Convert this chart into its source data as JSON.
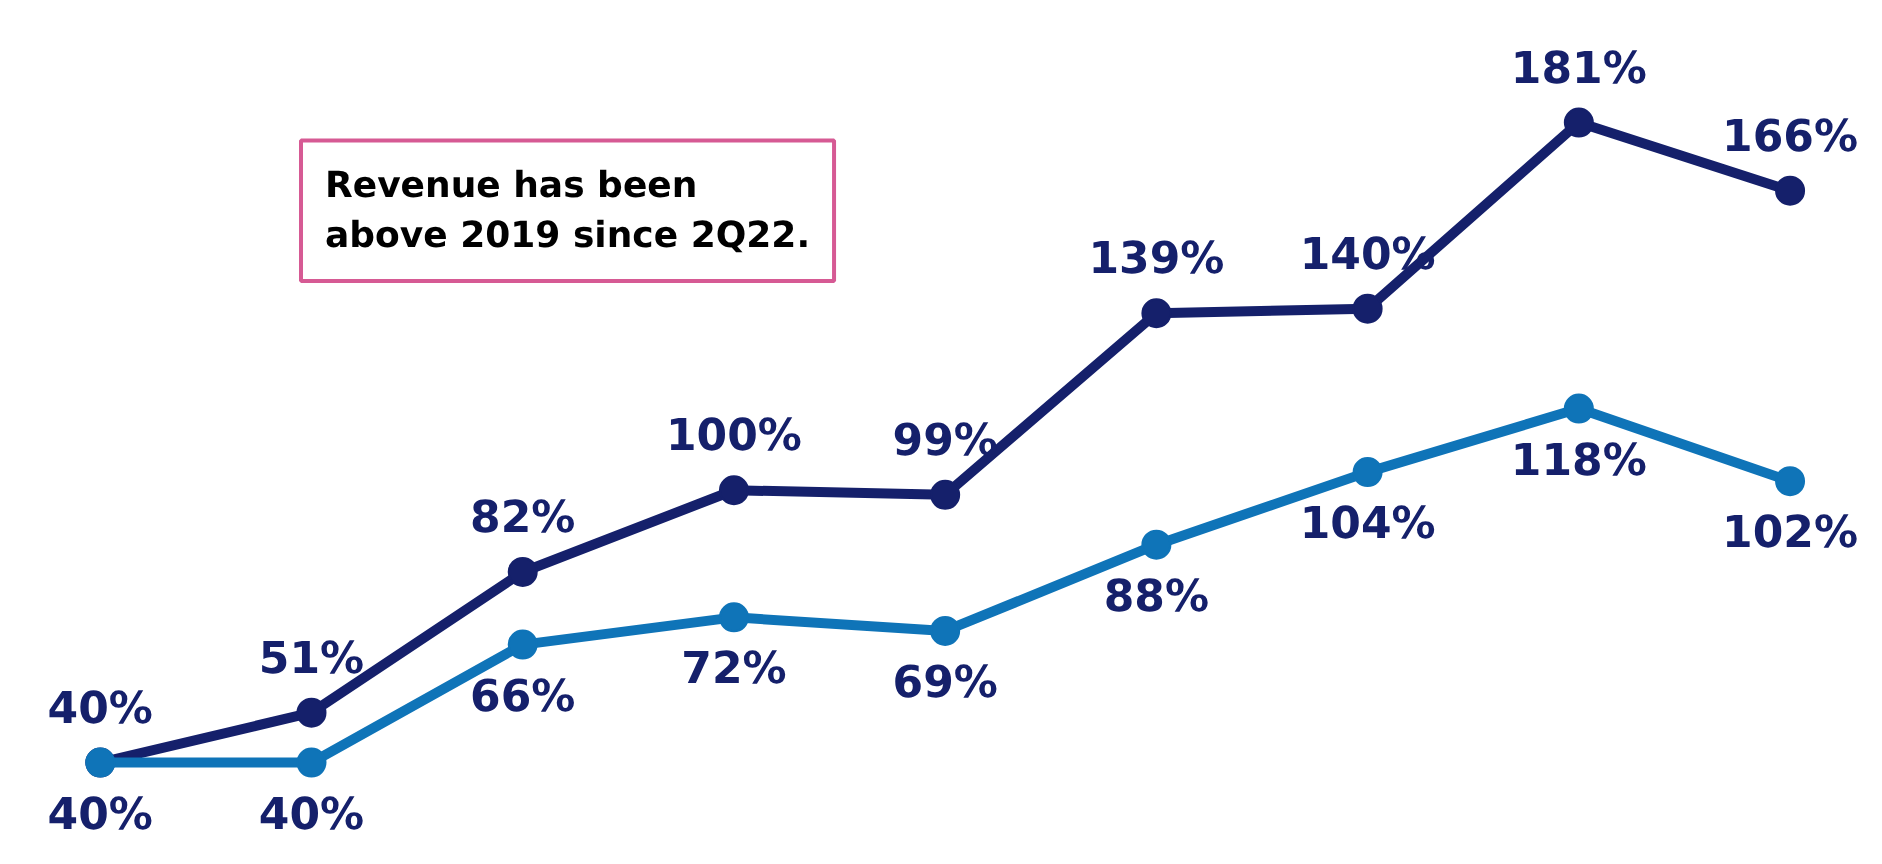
{
  "chart_data": {
    "type": "line",
    "categories": [
      null,
      null,
      null,
      null,
      null,
      null,
      null,
      null,
      null
    ],
    "series": [
      {
        "color": "#15206b",
        "values": [
          40,
          51,
          82,
          100,
          99,
          139,
          140,
          181,
          166
        ],
        "value_labels": [
          "40%",
          "51%",
          "82%",
          "100%",
          "99%",
          "139%",
          "140%",
          "181%",
          "166%"
        ]
      },
      {
        "color": "#0f74b8",
        "values": [
          40,
          40,
          66,
          72,
          69,
          88,
          104,
          118,
          102
        ],
        "value_labels": [
          "40%",
          "40%",
          "66%",
          "72%",
          "69%",
          "88%",
          "104%",
          "118%",
          "102%"
        ]
      }
    ],
    "marker": "circle",
    "line_style": "solid",
    "grid": false,
    "annotations": [
      "Revenue has been\nabove 2019 since 2Q22."
    ]
  }
}
